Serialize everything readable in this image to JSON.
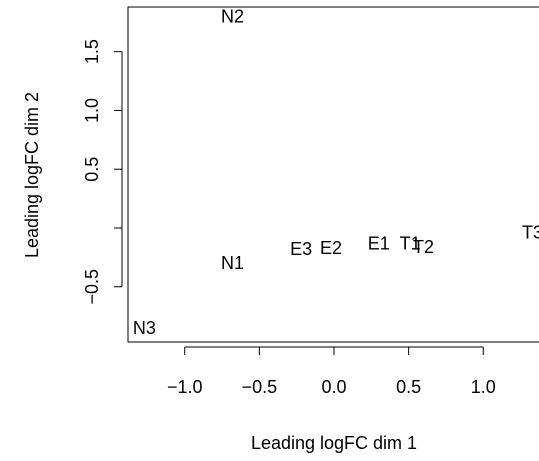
{
  "chart_data": {
    "type": "scatter",
    "title": "",
    "xlabel": "Leading logFC dim 1",
    "ylabel": "Leading logFC dim 2",
    "xlim": [
      -1.38,
      1.38
    ],
    "ylim": [
      -0.97,
      1.88
    ],
    "x_ticks": [
      -1.0,
      -0.5,
      0.0,
      0.5,
      1.0
    ],
    "x_tick_labels": [
      "−1.0",
      "−0.5",
      "0.0",
      "0.5",
      "1.0"
    ],
    "y_ticks": [
      -0.5,
      0.0,
      0.5,
      1.0,
      1.5
    ],
    "y_tick_labels": [
      "−0.5",
      "",
      "0.5",
      "1.0",
      "1.5"
    ],
    "grid": false,
    "points": [
      {
        "label": "N2",
        "x": -0.68,
        "y": 1.8
      },
      {
        "label": "N1",
        "x": -0.68,
        "y": -0.3
      },
      {
        "label": "N3",
        "x": -1.27,
        "y": -0.85
      },
      {
        "label": "E3",
        "x": -0.22,
        "y": -0.18
      },
      {
        "label": "E2",
        "x": -0.02,
        "y": -0.17
      },
      {
        "label": "E1",
        "x": 0.3,
        "y": -0.13
      },
      {
        "label": "T1",
        "x": 0.51,
        "y": -0.13
      },
      {
        "label": "T2",
        "x": 0.6,
        "y": -0.16
      },
      {
        "label": "T3",
        "x": 1.33,
        "y": -0.04
      }
    ]
  }
}
